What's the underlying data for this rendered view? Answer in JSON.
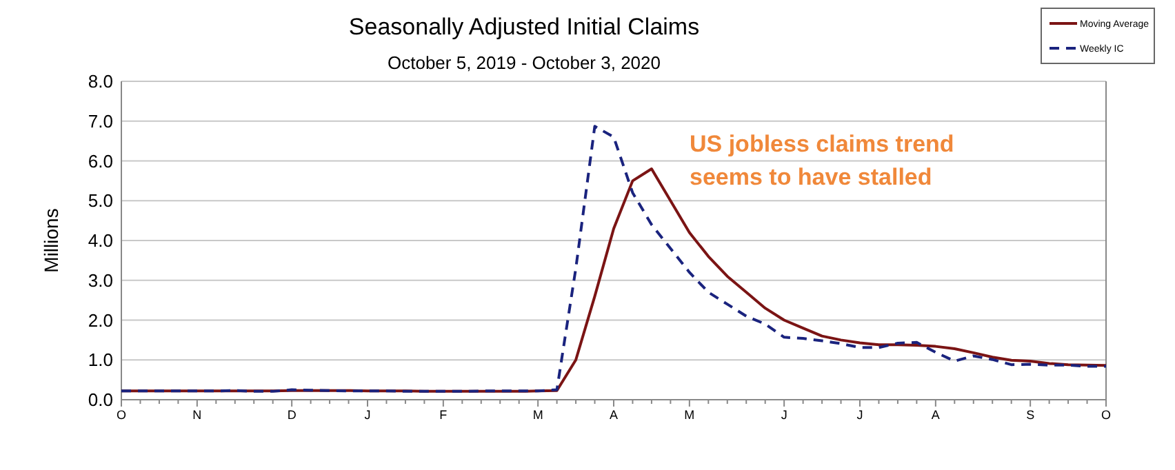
{
  "chart_data": {
    "type": "line",
    "title": "Seasonally Adjusted Initial Claims",
    "subtitle": "October 5, 2019 - October 3, 2020",
    "ylabel": "Millions",
    "categories": [
      "O",
      null,
      null,
      null,
      "N",
      null,
      null,
      null,
      null,
      "D",
      null,
      null,
      null,
      "J",
      null,
      null,
      null,
      "F",
      null,
      null,
      null,
      null,
      "M",
      null,
      null,
      null,
      "A",
      null,
      null,
      null,
      "M",
      null,
      null,
      null,
      null,
      "J",
      null,
      null,
      null,
      "J",
      null,
      null,
      null,
      "A",
      null,
      null,
      null,
      null,
      "S",
      null,
      null,
      null,
      "O"
    ],
    "series": [
      {
        "name": "Moving Average",
        "color": "#7b1414",
        "line_style": "solid",
        "values": [
          0.22,
          0.22,
          0.22,
          0.22,
          0.22,
          0.22,
          0.22,
          0.22,
          0.22,
          0.23,
          0.23,
          0.23,
          0.23,
          0.22,
          0.22,
          0.22,
          0.21,
          0.21,
          0.21,
          0.21,
          0.21,
          0.21,
          0.22,
          0.23,
          1.0,
          2.6,
          4.3,
          5.5,
          5.8,
          5.0,
          4.2,
          3.6,
          3.1,
          2.7,
          2.3,
          2.0,
          1.8,
          1.6,
          1.5,
          1.43,
          1.38,
          1.38,
          1.37,
          1.34,
          1.28,
          1.18,
          1.07,
          0.99,
          0.97,
          0.91,
          0.88,
          0.87,
          0.86
        ]
      },
      {
        "name": "Weekly IC",
        "color": "#1a237e",
        "line_style": "dashed",
        "values": [
          0.22,
          0.22,
          0.22,
          0.22,
          0.22,
          0.22,
          0.23,
          0.21,
          0.21,
          0.25,
          0.24,
          0.23,
          0.22,
          0.22,
          0.22,
          0.21,
          0.21,
          0.21,
          0.21,
          0.22,
          0.22,
          0.22,
          0.22,
          0.25,
          3.3,
          6.87,
          6.6,
          5.2,
          4.4,
          3.8,
          3.2,
          2.7,
          2.4,
          2.1,
          1.9,
          1.57,
          1.54,
          1.48,
          1.41,
          1.31,
          1.31,
          1.42,
          1.44,
          1.19,
          0.97,
          1.1,
          1.01,
          0.88,
          0.89,
          0.87,
          0.87,
          0.84,
          0.84
        ]
      }
    ],
    "ylim": [
      0,
      8
    ],
    "yticks": [
      {
        "value": 0,
        "label": "0.0"
      },
      {
        "value": 1,
        "label": "1.0"
      },
      {
        "value": 2,
        "label": "2.0"
      },
      {
        "value": 3,
        "label": "3.0"
      },
      {
        "value": 4,
        "label": "4.0"
      },
      {
        "value": 5,
        "label": "5.0"
      },
      {
        "value": 6,
        "label": "6.0"
      },
      {
        "value": 7,
        "label": "7.0"
      },
      {
        "value": 8,
        "label": "8.0"
      }
    ],
    "grid": "y",
    "legend": "top right",
    "marker": "none",
    "annotations": [
      "US jobless claims trend\nseems to have stalled"
    ]
  }
}
